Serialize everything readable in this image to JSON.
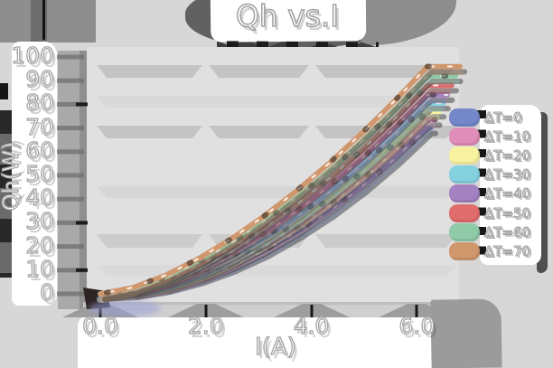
{
  "title": "Qh vs.I",
  "axes": {
    "x_label": "I(A)",
    "y_label": "Qh(W)",
    "x_ticks": [
      "0.0",
      "2.0",
      "4.0",
      "6.0"
    ],
    "y_ticks": [
      "0",
      "10",
      "20",
      "30",
      "40",
      "50",
      "60",
      "70",
      "80",
      "90",
      "100"
    ]
  },
  "legend": {
    "position": "right",
    "items": [
      {
        "label": "ΔT=0",
        "color": "#7487c8"
      },
      {
        "label": "ΔT=10",
        "color": "#e18db9"
      },
      {
        "label": "ΔT=20",
        "color": "#f7f2a0"
      },
      {
        "label": "ΔT=30",
        "color": "#86d1e0"
      },
      {
        "label": "ΔT=40",
        "color": "#a482c2"
      },
      {
        "label": "ΔT=50",
        "color": "#e06c6c"
      },
      {
        "label": "ΔT=60",
        "color": "#8fcaa9"
      },
      {
        "label": "ΔT=70",
        "color": "#d0976d"
      }
    ]
  },
  "chart_data": {
    "type": "line",
    "title": "Qh vs.I",
    "xlabel": "I(A)",
    "ylabel": "Qh(W)",
    "xlim": [
      0,
      6.8
    ],
    "ylim": [
      0,
      100
    ],
    "grid": "horizontal-bands",
    "legend_position": "right",
    "x": [
      0,
      0.62,
      1.24,
      1.86,
      2.48,
      3.1,
      3.72,
      4.34,
      4.96,
      5.58,
      6.2
    ],
    "series": [
      {
        "name": "ΔT=0",
        "values": [
          0,
          0.8,
          3.0,
          6.7,
          11.7,
          18.1,
          25.9,
          34.9,
          45.3,
          57.0,
          70.0
        ]
      },
      {
        "name": "ΔT=10",
        "values": [
          0,
          0.9,
          3.5,
          7.6,
          13.0,
          19.8,
          28.0,
          37.5,
          48.2,
          60.2,
          73.5
        ]
      },
      {
        "name": "ΔT=20",
        "values": [
          0,
          1.1,
          4.1,
          8.5,
          14.4,
          21.7,
          30.2,
          40.1,
          51.2,
          63.5,
          77.0
        ]
      },
      {
        "name": "ΔT=30",
        "values": [
          0,
          1.3,
          4.6,
          9.5,
          15.8,
          23.4,
          32.4,
          42.7,
          54.1,
          66.7,
          80.5
        ]
      },
      {
        "name": "ΔT=40",
        "values": [
          0,
          1.6,
          5.3,
          10.6,
          17.4,
          25.5,
          34.9,
          45.5,
          57.2,
          70.1,
          84.0
        ]
      },
      {
        "name": "ΔT=50",
        "values": [
          0,
          1.9,
          6.1,
          11.9,
          19.2,
          27.8,
          37.7,
          48.7,
          60.8,
          73.9,
          88.0
        ]
      },
      {
        "name": "ΔT=60",
        "values": [
          0,
          2.3,
          7.0,
          13.4,
          21.2,
          30.4,
          40.6,
          52.0,
          64.4,
          77.7,
          92.0
        ]
      },
      {
        "name": "ΔT=70",
        "values": [
          0,
          2.7,
          7.9,
          14.9,
          23.2,
          32.8,
          43.5,
          55.2,
          67.9,
          81.5,
          96.0
        ]
      }
    ]
  }
}
